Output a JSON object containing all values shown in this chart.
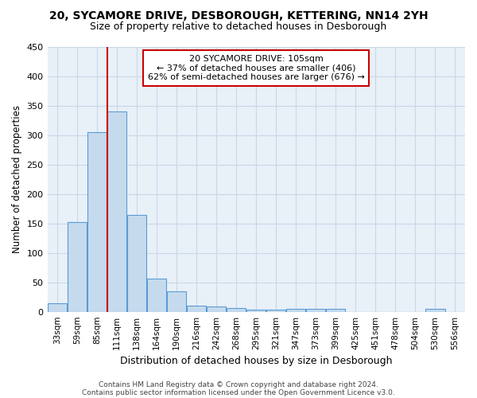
{
  "title1": "20, SYCAMORE DRIVE, DESBOROUGH, KETTERING, NN14 2YH",
  "title2": "Size of property relative to detached houses in Desborough",
  "xlabel": "Distribution of detached houses by size in Desborough",
  "ylabel": "Number of detached properties",
  "bin_labels": [
    "33sqm",
    "59sqm",
    "85sqm",
    "111sqm",
    "138sqm",
    "164sqm",
    "190sqm",
    "216sqm",
    "242sqm",
    "268sqm",
    "295sqm",
    "321sqm",
    "347sqm",
    "373sqm",
    "399sqm",
    "425sqm",
    "451sqm",
    "478sqm",
    "504sqm",
    "530sqm",
    "556sqm"
  ],
  "bar_heights": [
    15,
    153,
    305,
    340,
    165,
    57,
    35,
    10,
    9,
    6,
    3,
    4,
    5,
    5,
    5,
    0,
    0,
    0,
    0,
    5,
    0
  ],
  "bar_color": "#c5dbed",
  "bar_edge_color": "#5b9bd5",
  "property_line_x": 3,
  "property_line_color": "#cc0000",
  "annotation_line1": "20 SYCAMORE DRIVE: 105sqm",
  "annotation_line2": "← 37% of detached houses are smaller (406)",
  "annotation_line3": "62% of semi-detached houses are larger (676) →",
  "annotation_box_color": "#ffffff",
  "annotation_box_edge_color": "#cc0000",
  "ylim": [
    0,
    450
  ],
  "yticks": [
    0,
    50,
    100,
    150,
    200,
    250,
    300,
    350,
    400,
    450
  ],
  "grid_color": "#c8d8e8",
  "bg_color": "#e8f0f8",
  "footer1": "Contains HM Land Registry data © Crown copyright and database right 2024.",
  "footer2": "Contains public sector information licensed under the Open Government Licence v3.0."
}
